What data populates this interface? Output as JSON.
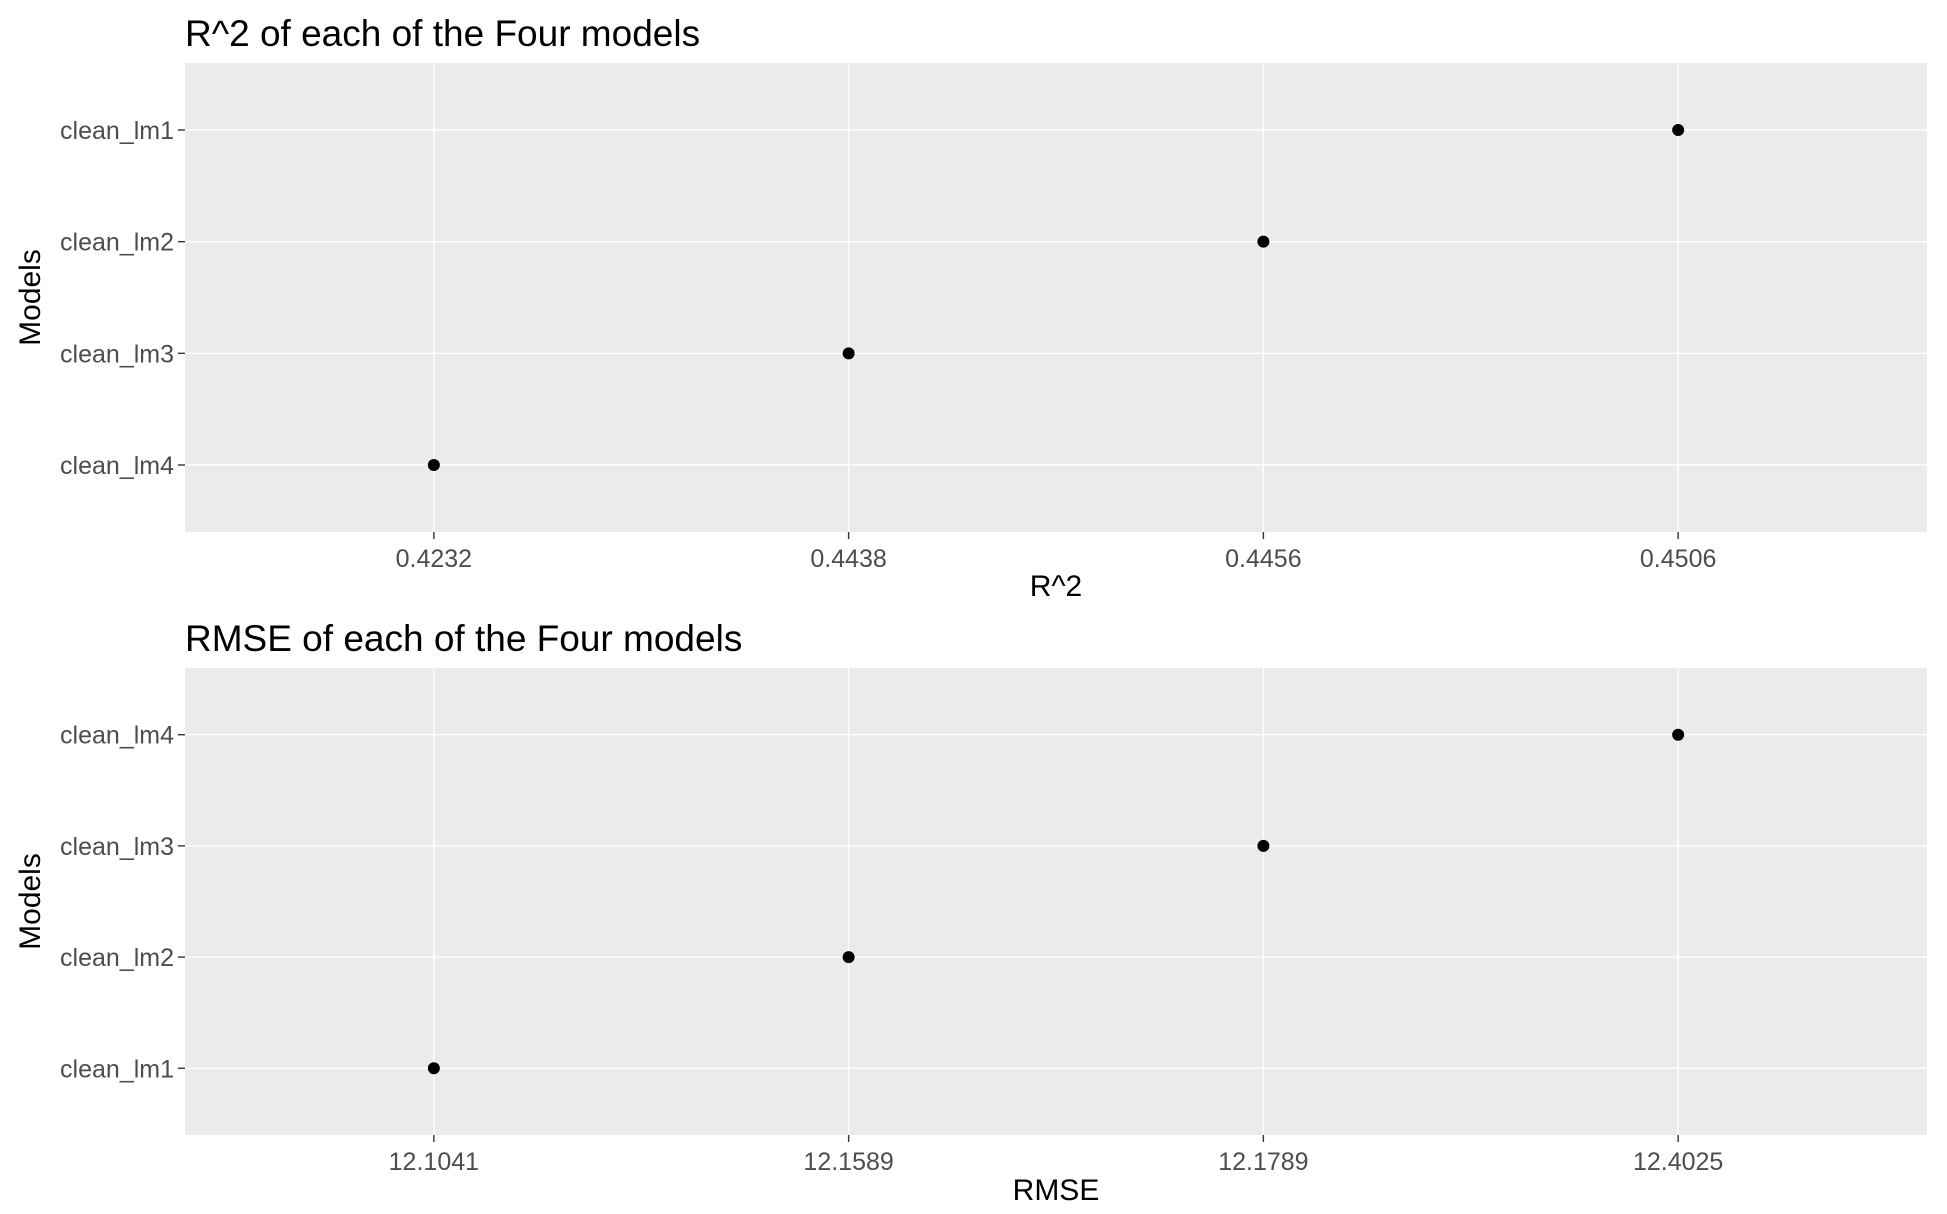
{
  "chart_data": [
    {
      "type": "scatter",
      "title": "R^2 of each of the Four models",
      "xlabel": "R^2",
      "ylabel": "Models",
      "x_ticks": [
        "0.4232",
        "0.4438",
        "0.4456",
        "0.4506"
      ],
      "y_categories": [
        "clean_lm4",
        "clean_lm3",
        "clean_lm2",
        "clean_lm1"
      ],
      "points": [
        {
          "x": "0.4232",
          "y": "clean_lm4"
        },
        {
          "x": "0.4438",
          "y": "clean_lm3"
        },
        {
          "x": "0.4456",
          "y": "clean_lm2"
        },
        {
          "x": "0.4506",
          "y": "clean_lm1"
        }
      ],
      "x_axis_type": "discrete",
      "grid": true,
      "panel_color": "#ebebeb",
      "grid_color": "#ffffff",
      "point_color": "#000000"
    },
    {
      "type": "scatter",
      "title": "RMSE of each of the Four models",
      "xlabel": "RMSE",
      "ylabel": "Models",
      "x_ticks": [
        "12.1041",
        "12.1589",
        "12.1789",
        "12.4025"
      ],
      "y_categories": [
        "clean_lm1",
        "clean_lm2",
        "clean_lm3",
        "clean_lm4"
      ],
      "points": [
        {
          "x": "12.1041",
          "y": "clean_lm1"
        },
        {
          "x": "12.1589",
          "y": "clean_lm2"
        },
        {
          "x": "12.1789",
          "y": "clean_lm3"
        },
        {
          "x": "12.4025",
          "y": "clean_lm4"
        }
      ],
      "x_axis_type": "discrete",
      "grid": true,
      "panel_color": "#ebebeb",
      "grid_color": "#ffffff",
      "point_color": "#000000"
    }
  ]
}
